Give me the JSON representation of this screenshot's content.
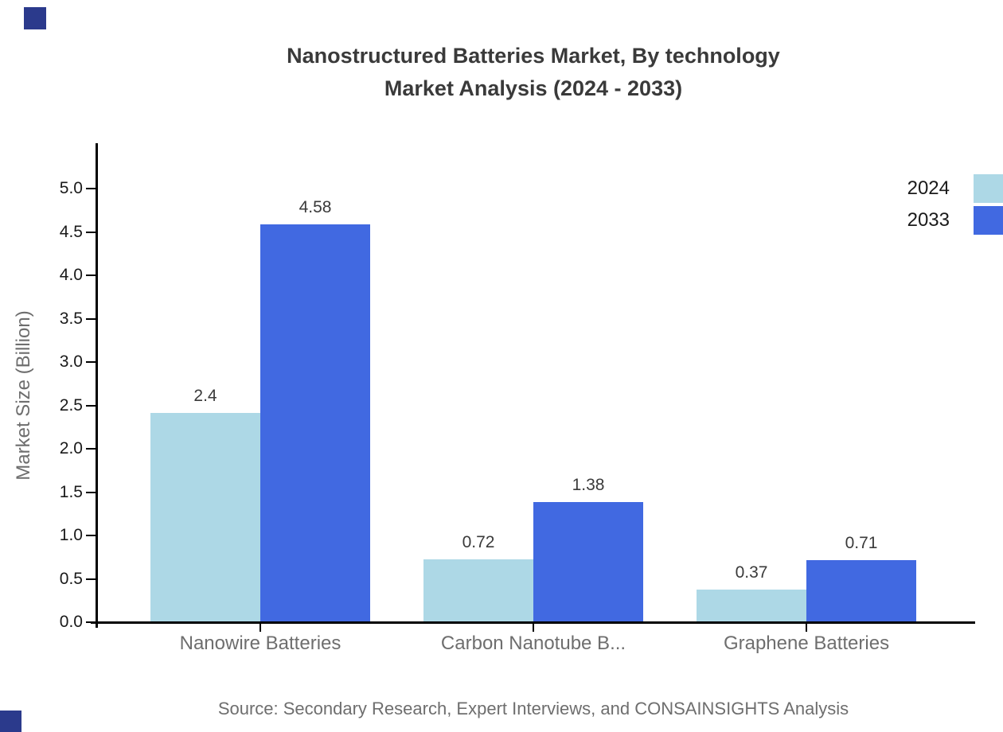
{
  "title": {
    "line1": "Nanostructured Batteries Market, By technology",
    "line2": "Market Analysis (2024 - 2033)"
  },
  "y_axis": {
    "label": "Market Size (Billion)",
    "ticks": [
      "0.0",
      "0.5",
      "1.0",
      "1.5",
      "2.0",
      "2.5",
      "3.0",
      "3.5",
      "4.0",
      "4.5",
      "5.0"
    ]
  },
  "chart_data": {
    "type": "bar",
    "title": "Nanostructured Batteries Market, By technology Market Analysis (2024 - 2033)",
    "categories": [
      "Nanowire Batteries",
      "Carbon Nanotube B...",
      "Graphene Batteries"
    ],
    "series": [
      {
        "name": "2024",
        "color": "#ADD8E6",
        "values": [
          2.4,
          0.72,
          0.37
        ]
      },
      {
        "name": "2033",
        "color": "#4169E1",
        "values": [
          4.58,
          1.38,
          0.71
        ]
      }
    ],
    "bar_labels": [
      [
        "2.4",
        "0.72",
        "0.37"
      ],
      [
        "4.58",
        "1.38",
        "0.71"
      ]
    ],
    "xlabel": "",
    "ylabel": "Market Size (Billion)",
    "ylim": [
      0,
      5.5
    ],
    "ytick_step": 0.5,
    "grid": false,
    "legend_position": "top-right"
  },
  "legend": {
    "items": [
      {
        "label": "2024",
        "color": "#ADD8E6"
      },
      {
        "label": "2033",
        "color": "#4169E1"
      }
    ]
  },
  "source": {
    "text": "Source: Secondary Research, Expert Interviews, and CONSAINSIGHTS Analysis"
  },
  "colors": {
    "series_2024": "#ADD8E6",
    "series_2033": "#4169E1",
    "title_text": "#3a3a3a",
    "axis_line": "#000000",
    "tick_text": "#1a1a1a",
    "muted_text": "#6e6e6e",
    "corner_square": "#2b3a8c"
  }
}
